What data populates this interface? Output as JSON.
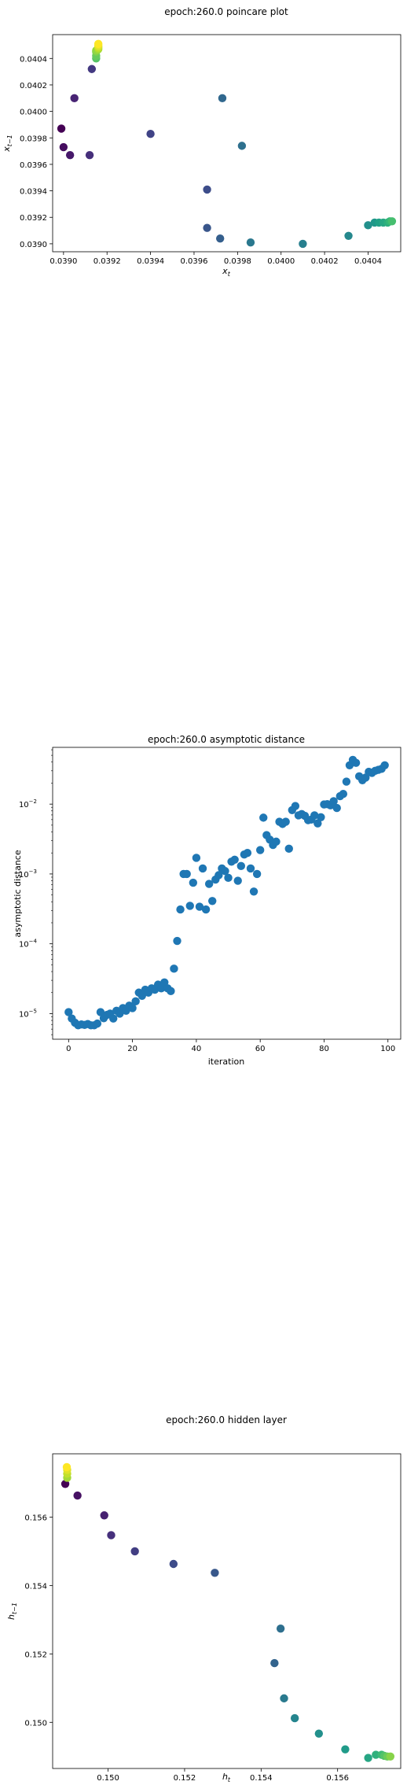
{
  "chart_data": [
    {
      "type": "scatter",
      "title": "epoch:260.0 poincare plot",
      "xlabel": "x_t",
      "ylabel": "x_{t-1}",
      "xlim": [
        0.03895,
        0.04055
      ],
      "ylim": [
        0.03894,
        0.04058
      ],
      "yscale": "linear",
      "xticks": [
        {
          "v": 0.039,
          "label": "0.0390"
        },
        {
          "v": 0.0392,
          "label": "0.0392"
        },
        {
          "v": 0.0394,
          "label": "0.0394"
        },
        {
          "v": 0.0396,
          "label": "0.0396"
        },
        {
          "v": 0.0398,
          "label": "0.0398"
        },
        {
          "v": 0.04,
          "label": "0.0400"
        },
        {
          "v": 0.0402,
          "label": "0.0402"
        },
        {
          "v": 0.0404,
          "label": "0.0404"
        }
      ],
      "yticks": [
        {
          "v": 0.039,
          "label": "0.0390"
        },
        {
          "v": 0.0392,
          "label": "0.0392"
        },
        {
          "v": 0.0394,
          "label": "0.0394"
        },
        {
          "v": 0.0396,
          "label": "0.0396"
        },
        {
          "v": 0.0398,
          "label": "0.0398"
        },
        {
          "v": 0.04,
          "label": "0.0400"
        },
        {
          "v": 0.0402,
          "label": "0.0402"
        },
        {
          "v": 0.0404,
          "label": "0.0404"
        }
      ],
      "color_by_order": true,
      "points": [
        [
          0.03899,
          0.03987
        ],
        [
          0.039,
          0.03973
        ],
        [
          0.03903,
          0.03967
        ],
        [
          0.03905,
          0.0401
        ],
        [
          0.03912,
          0.03967
        ],
        [
          0.03913,
          0.04032
        ],
        [
          0.0394,
          0.03983
        ],
        [
          0.03966,
          0.03941
        ],
        [
          0.03966,
          0.03912
        ],
        [
          0.03972,
          0.03904
        ],
        [
          0.03973,
          0.0401
        ],
        [
          0.03982,
          0.03974
        ],
        [
          0.03986,
          0.03901
        ],
        [
          0.0401,
          0.039
        ],
        [
          0.04031,
          0.03906
        ],
        [
          0.0404,
          0.03914
        ],
        [
          0.04043,
          0.03916
        ],
        [
          0.04045,
          0.03916
        ],
        [
          0.04047,
          0.03916
        ],
        [
          0.04049,
          0.03916
        ],
        [
          0.0405,
          0.03917
        ],
        [
          0.04051,
          0.03917
        ],
        [
          0.03915,
          0.0404
        ],
        [
          0.03915,
          0.04042
        ],
        [
          0.03915,
          0.04045
        ],
        [
          0.03915,
          0.04046
        ],
        [
          0.03916,
          0.04047
        ],
        [
          0.03916,
          0.04048
        ],
        [
          0.03916,
          0.04049
        ],
        [
          0.03916,
          0.0405
        ],
        [
          0.03916,
          0.04051
        ]
      ]
    },
    {
      "type": "scatter",
      "title": "epoch:260.0 asymptotic distance",
      "xlabel": "iteration",
      "ylabel": "asymptotic distance",
      "xlim": [
        -5,
        104
      ],
      "ylim": [
        4.3e-06,
        0.065
      ],
      "yscale": "log",
      "xticks": [
        {
          "v": 0,
          "label": "0"
        },
        {
          "v": 20,
          "label": "20"
        },
        {
          "v": 40,
          "label": "40"
        },
        {
          "v": 60,
          "label": "60"
        },
        {
          "v": 80,
          "label": "80"
        },
        {
          "v": 100,
          "label": "100"
        }
      ],
      "yticks": [
        {
          "v": 1e-05,
          "label": "10",
          "exp": "−5"
        },
        {
          "v": 0.0001,
          "label": "10",
          "exp": "−4"
        },
        {
          "v": 0.001,
          "label": "10",
          "exp": "−3"
        },
        {
          "v": 0.01,
          "label": "10",
          "exp": "−2"
        }
      ],
      "color": "#1f77b4",
      "x": [
        0,
        1,
        2,
        3,
        4,
        5,
        6,
        7,
        8,
        9,
        10,
        11,
        12,
        13,
        14,
        15,
        16,
        17,
        18,
        19,
        20,
        21,
        22,
        23,
        24,
        25,
        26,
        27,
        28,
        29,
        30,
        31,
        32,
        33,
        34,
        35,
        36,
        37,
        38,
        39,
        40,
        41,
        42,
        43,
        44,
        45,
        46,
        47,
        48,
        49,
        50,
        51,
        52,
        53,
        54,
        55,
        56,
        57,
        58,
        59,
        60,
        61,
        62,
        63,
        64,
        65,
        66,
        67,
        68,
        69,
        70,
        71,
        72,
        73,
        74,
        75,
        76,
        77,
        78,
        79,
        80,
        81,
        82,
        83,
        84,
        85,
        86,
        87,
        88,
        89,
        90,
        91,
        92,
        93,
        94,
        95,
        96,
        97,
        98,
        99
      ],
      "y": [
        1.05e-05,
        8.5e-06,
        7.4e-06,
        6.8e-06,
        7e-06,
        6.9e-06,
        7.1e-06,
        6.8e-06,
        6.8e-06,
        7.2e-06,
        1.05e-05,
        8.6e-06,
        9.6e-06,
        1e-05,
        8.5e-06,
        1.1e-05,
        1e-05,
        1.2e-05,
        1.1e-05,
        1.3e-05,
        1.2e-05,
        1.5e-05,
        2e-05,
        1.8e-05,
        2.2e-05,
        2e-05,
        2.3e-05,
        2.2e-05,
        2.6e-05,
        2.3e-05,
        2.8e-05,
        2.3e-05,
        2.1e-05,
        4.4e-05,
        0.00011,
        0.00031,
        0.001,
        0.001,
        0.00035,
        0.00075,
        0.0017,
        0.00034,
        0.0012,
        0.00031,
        0.00072,
        0.00041,
        0.00083,
        0.00096,
        0.0012,
        0.0011,
        0.00088,
        0.0015,
        0.0016,
        0.0008,
        0.0013,
        0.0019,
        0.002,
        0.0012,
        0.00056,
        0.001,
        0.0022,
        0.0064,
        0.0036,
        0.0031,
        0.0026,
        0.0029,
        0.0056,
        0.0052,
        0.0056,
        0.0023,
        0.0082,
        0.0094,
        0.0069,
        0.0072,
        0.0068,
        0.0059,
        0.006,
        0.0069,
        0.0053,
        0.0065,
        0.0099,
        0.01,
        0.0096,
        0.011,
        0.0088,
        0.013,
        0.014,
        0.021,
        0.036,
        0.043,
        0.039,
        0.025,
        0.022,
        0.024,
        0.029,
        0.028,
        0.03,
        0.031,
        0.032,
        0.036
      ]
    },
    {
      "type": "scatter",
      "title": "epoch:260.0 hidden layer",
      "xlabel": "h_t",
      "ylabel": "h_{t-1}",
      "xlim": [
        0.14855,
        0.15765
      ],
      "ylim": [
        0.14865,
        0.15785
      ],
      "yscale": "linear",
      "xticks": [
        {
          "v": 0.15,
          "label": "0.150"
        },
        {
          "v": 0.152,
          "label": "0.152"
        },
        {
          "v": 0.154,
          "label": "0.154"
        },
        {
          "v": 0.156,
          "label": "0.156"
        }
      ],
      "yticks": [
        {
          "v": 0.15,
          "label": "0.150"
        },
        {
          "v": 0.152,
          "label": "0.152"
        },
        {
          "v": 0.154,
          "label": "0.154"
        },
        {
          "v": 0.156,
          "label": "0.156"
        }
      ],
      "color_by_order": true,
      "points": [
        [
          0.14888,
          0.15697
        ],
        [
          0.1492,
          0.15663
        ],
        [
          0.1499,
          0.15605
        ],
        [
          0.15008,
          0.15547
        ],
        [
          0.1507,
          0.155
        ],
        [
          0.15171,
          0.15463
        ],
        [
          0.15279,
          0.15437
        ],
        [
          0.15435,
          0.15173
        ],
        [
          0.15451,
          0.15274
        ],
        [
          0.1546,
          0.1507
        ],
        [
          0.15488,
          0.15012
        ],
        [
          0.15551,
          0.14967
        ],
        [
          0.1562,
          0.14921
        ],
        [
          0.1568,
          0.14896
        ],
        [
          0.157,
          0.14905
        ],
        [
          0.15715,
          0.14905
        ],
        [
          0.15722,
          0.14902
        ],
        [
          0.1573,
          0.149
        ],
        [
          0.15738,
          0.149
        ],
        [
          0.14893,
          0.15715
        ],
        [
          0.14893,
          0.15727
        ],
        [
          0.14893,
          0.15738
        ],
        [
          0.14892,
          0.15746
        ]
      ]
    }
  ]
}
